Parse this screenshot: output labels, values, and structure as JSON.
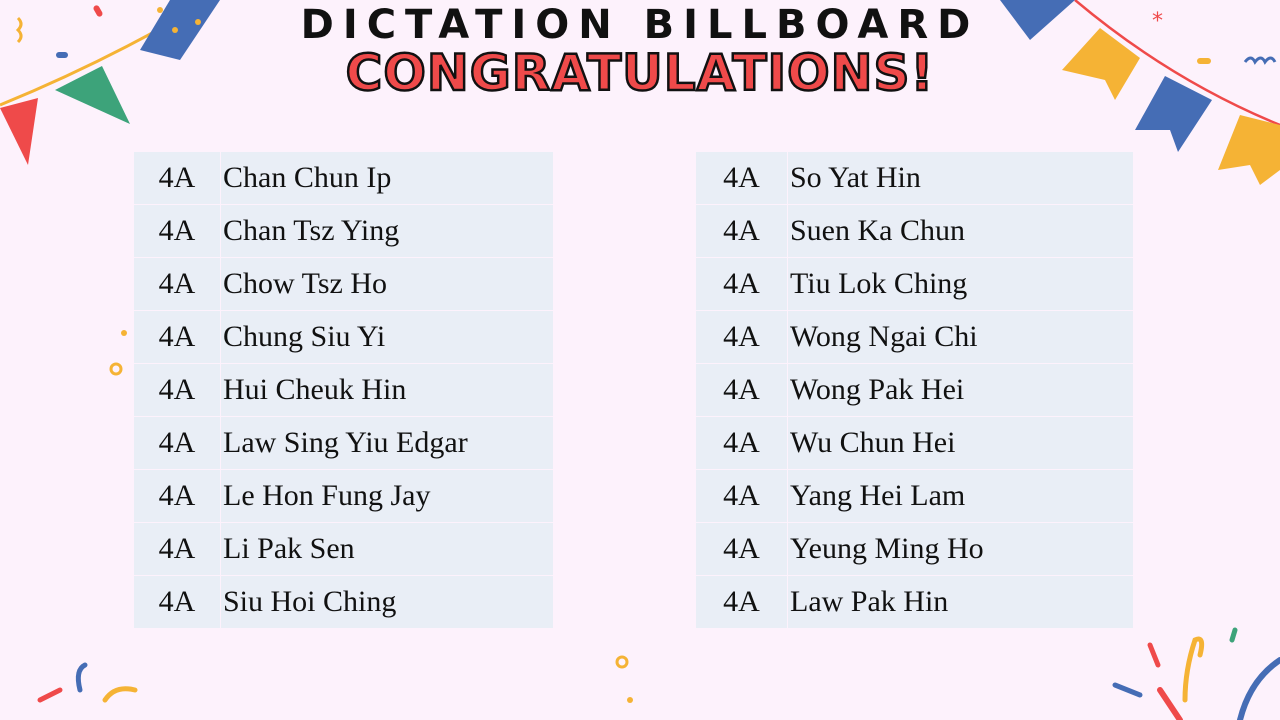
{
  "header": {
    "line1": "DICTATION BILLBOARD",
    "line2": "CONGRATULATIONS!"
  },
  "colors": {
    "background": "#fdf2fc",
    "cell": "#e9eef6",
    "title_red": "#ef4a4a",
    "blue": "#456db5",
    "yellow": "#f5b335",
    "green": "#3da37a"
  },
  "left_list": [
    {
      "class": "4A",
      "name": "Chan Chun Ip"
    },
    {
      "class": "4A",
      "name": "Chan Tsz Ying"
    },
    {
      "class": "4A",
      "name": "Chow Tsz Ho"
    },
    {
      "class": "4A",
      "name": "Chung Siu Yi"
    },
    {
      "class": "4A",
      "name": "Hui Cheuk Hin"
    },
    {
      "class": "4A",
      "name": "Law Sing Yiu Edgar"
    },
    {
      "class": "4A",
      "name": "Le Hon Fung Jay"
    },
    {
      "class": "4A",
      "name": "Li Pak Sen"
    },
    {
      "class": "4A",
      "name": "Siu Hoi Ching"
    }
  ],
  "right_list": [
    {
      "class": "4A",
      "name": "So Yat Hin"
    },
    {
      "class": "4A",
      "name": "Suen Ka Chun"
    },
    {
      "class": "4A",
      "name": "Tiu Lok Ching"
    },
    {
      "class": "4A",
      "name": "Wong Ngai Chi"
    },
    {
      "class": "4A",
      "name": "Wong Pak Hei"
    },
    {
      "class": "4A",
      "name": "Wu Chun Hei"
    },
    {
      "class": "4A",
      "name": "Yang Hei Lam"
    },
    {
      "class": "4A",
      "name": "Yeung Ming Ho"
    },
    {
      "class": "4A",
      "name": "Law Pak Hin"
    }
  ]
}
